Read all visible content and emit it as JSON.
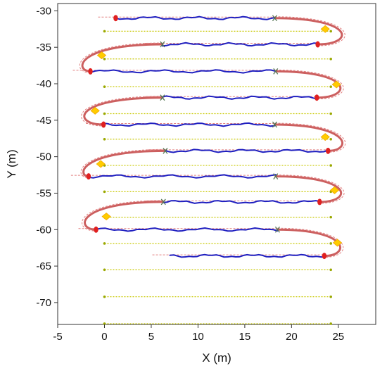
{
  "chart_data": {
    "type": "line",
    "title": "",
    "xlabel": "X (m)",
    "ylabel": "Y (m)",
    "xlim": [
      -5,
      29
    ],
    "ylim": [
      -73,
      -29
    ],
    "xticks": [
      -5,
      0,
      5,
      10,
      15,
      20,
      25
    ],
    "yticks": [
      -30,
      -35,
      -40,
      -45,
      -50,
      -55,
      -60,
      -65,
      -70
    ],
    "grid": false,
    "legend": "none",
    "colors": {
      "straight": "#1f1fc0",
      "turn": "#cc5f5f",
      "reference": "#e28080",
      "lane": "#c8c800",
      "red_marker": "#e02020",
      "diamond": "#ffcc00"
    },
    "lanes": {
      "x_start": 0,
      "x_end": 24.2,
      "y": [
        -32.8,
        -36.6,
        -40.4,
        -44.1,
        -47.6,
        -51.2,
        -54.8,
        -58.3,
        -61.9,
        -65.5,
        -69.2,
        -72.9
      ]
    },
    "straights": [
      {
        "y": -31,
        "x_start": 1.2,
        "x_end": 18.2
      },
      {
        "y": -34.6,
        "x_start": 6.2,
        "x_end": 22.8
      },
      {
        "y": -38.3,
        "x_start": -1.5,
        "x_end": 18.3
      },
      {
        "y": -41.9,
        "x_start": 6.2,
        "x_end": 22.7
      },
      {
        "y": -45.6,
        "x_start": -0.1,
        "x_end": 18.2
      },
      {
        "y": -49.2,
        "x_start": 6.5,
        "x_end": 23.9
      },
      {
        "y": -52.7,
        "x_start": -1.7,
        "x_end": 18.3
      },
      {
        "y": -56.2,
        "x_start": 6.3,
        "x_end": 23
      },
      {
        "y": -60,
        "x_start": -0.9,
        "x_end": 18.5
      },
      {
        "y": -63.6,
        "x_start": 7,
        "x_end": 23.5
      }
    ],
    "turns": [
      {
        "from": [
          18.2,
          -31
        ],
        "to": [
          22.8,
          -34.6
        ],
        "side": "right",
        "apex_x": 26.8
      },
      {
        "from": [
          6.2,
          -34.6
        ],
        "to": [
          -1.5,
          -38.3
        ],
        "side": "left",
        "apex_x": -3.2
      },
      {
        "from": [
          18.3,
          -38.3
        ],
        "to": [
          22.7,
          -41.9
        ],
        "side": "right",
        "apex_x": 26.6
      },
      {
        "from": [
          6.2,
          -41.9
        ],
        "to": [
          -0.1,
          -45.6
        ],
        "side": "left",
        "apex_x": -3.5
      },
      {
        "from": [
          18.2,
          -45.6
        ],
        "to": [
          23.9,
          -49.2
        ],
        "side": "right",
        "apex_x": 26.5
      },
      {
        "from": [
          6.5,
          -49.2
        ],
        "to": [
          -1.7,
          -52.7
        ],
        "side": "left",
        "apex_x": -2.9
      },
      {
        "from": [
          18.3,
          -52.7
        ],
        "to": [
          23,
          -56.2
        ],
        "side": "right",
        "apex_x": 26.6
      },
      {
        "from": [
          6.3,
          -56.2
        ],
        "to": [
          -0.9,
          -60
        ],
        "side": "left",
        "apex_x": -3.1
      },
      {
        "from": [
          18.5,
          -60
        ],
        "to": [
          23.5,
          -63.6
        ],
        "side": "right",
        "apex_x": 26.3
      }
    ],
    "red_markers": [
      [
        1.2,
        -31
      ],
      [
        22.8,
        -34.6
      ],
      [
        -1.5,
        -38.3
      ],
      [
        22.7,
        -41.9
      ],
      [
        -0.1,
        -45.6
      ],
      [
        23.9,
        -49.2
      ],
      [
        -1.7,
        -52.7
      ],
      [
        23,
        -56.2
      ],
      [
        -0.9,
        -60
      ],
      [
        23.5,
        -63.6
      ]
    ],
    "diamond_markers": [
      [
        23.6,
        -32.5
      ],
      [
        -0.3,
        -36.1
      ],
      [
        24.8,
        -40.1
      ],
      [
        -1,
        -43.7
      ],
      [
        23.6,
        -47.3
      ],
      [
        -0.4,
        -51
      ],
      [
        24.6,
        -54.6
      ],
      [
        0.2,
        -58.2
      ],
      [
        24.9,
        -61.8
      ]
    ],
    "cross_markers": [
      [
        18.2,
        -31
      ],
      [
        6.2,
        -34.6
      ],
      [
        18.3,
        -38.3
      ],
      [
        6.2,
        -41.9
      ],
      [
        18.2,
        -45.6
      ],
      [
        6.5,
        -49.2
      ],
      [
        18.3,
        -52.7
      ],
      [
        6.3,
        -56.2
      ],
      [
        18.5,
        -60
      ]
    ]
  }
}
